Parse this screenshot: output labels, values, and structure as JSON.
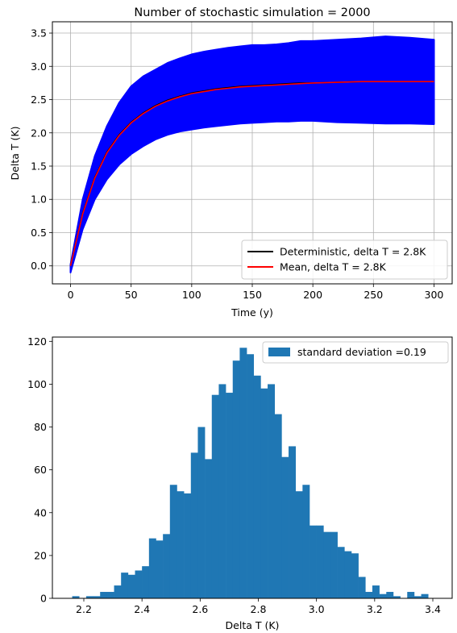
{
  "chart_data": [
    {
      "type": "line",
      "title": "Number of stochastic simulation = 2000",
      "xlabel": "Time (y)",
      "ylabel": "Delta T (K)",
      "xlim": [
        -15,
        315
      ],
      "ylim": [
        -0.27,
        3.67
      ],
      "xticks": [
        0,
        50,
        100,
        150,
        200,
        250,
        300
      ],
      "xtick_labels": [
        "0",
        "50",
        "100",
        "150",
        "200",
        "250",
        "300"
      ],
      "yticks": [
        0.0,
        0.5,
        1.0,
        1.5,
        2.0,
        2.5,
        3.0,
        3.5
      ],
      "ytick_labels": [
        "0.0",
        "0.5",
        "1.0",
        "1.5",
        "2.0",
        "2.5",
        "3.0",
        "3.5"
      ],
      "grid": true,
      "legend_position": "lower-right",
      "series": [
        {
          "name": "Deterministic, delta T = 2.8K",
          "color": "#000000",
          "x": [
            0,
            10,
            20,
            30,
            40,
            50,
            60,
            70,
            80,
            90,
            100,
            110,
            120,
            130,
            140,
            150,
            160,
            170,
            180,
            190,
            200,
            220,
            240,
            260,
            280,
            300
          ],
          "values": [
            0,
            0.79,
            1.33,
            1.71,
            1.97,
            2.16,
            2.3,
            2.41,
            2.49,
            2.55,
            2.6,
            2.63,
            2.66,
            2.68,
            2.7,
            2.71,
            2.72,
            2.73,
            2.74,
            2.75,
            2.75,
            2.76,
            2.77,
            2.77,
            2.77,
            2.77
          ]
        },
        {
          "name": "Mean, delta T = 2.8K",
          "color": "#ff0000",
          "x": [
            0,
            10,
            20,
            30,
            40,
            50,
            60,
            70,
            80,
            90,
            100,
            110,
            120,
            130,
            140,
            150,
            160,
            170,
            180,
            190,
            200,
            220,
            240,
            260,
            280,
            300
          ],
          "values": [
            0,
            0.78,
            1.32,
            1.7,
            1.96,
            2.15,
            2.29,
            2.4,
            2.48,
            2.54,
            2.59,
            2.62,
            2.65,
            2.67,
            2.69,
            2.7,
            2.71,
            2.72,
            2.73,
            2.74,
            2.75,
            2.76,
            2.77,
            2.77,
            2.77,
            2.77
          ]
        }
      ],
      "ensemble": {
        "color": "#0000ff",
        "x": [
          0,
          10,
          20,
          30,
          40,
          50,
          60,
          70,
          80,
          90,
          100,
          110,
          120,
          130,
          140,
          150,
          160,
          170,
          180,
          190,
          200,
          220,
          240,
          260,
          280,
          300
        ],
        "upper": [
          0.02,
          1.0,
          1.65,
          2.1,
          2.45,
          2.7,
          2.85,
          2.95,
          3.05,
          3.12,
          3.18,
          3.22,
          3.25,
          3.28,
          3.3,
          3.32,
          3.32,
          3.33,
          3.35,
          3.38,
          3.38,
          3.4,
          3.42,
          3.45,
          3.43,
          3.4
        ],
        "lower": [
          -0.1,
          0.55,
          1.0,
          1.3,
          1.52,
          1.68,
          1.8,
          1.9,
          1.97,
          2.02,
          2.05,
          2.08,
          2.1,
          2.12,
          2.14,
          2.15,
          2.16,
          2.17,
          2.17,
          2.18,
          2.18,
          2.16,
          2.15,
          2.14,
          2.14,
          2.13
        ]
      }
    },
    {
      "type": "bar",
      "subtype": "histogram",
      "xlabel": "Delta T (K)",
      "ylabel": "",
      "xlim": [
        2.118,
        2.43
      ],
      "ylim": [
        0,
        122
      ],
      "xticks": [
        2.2,
        2.4,
        2.6,
        2.8,
        3.0,
        3.2,
        3.4
      ],
      "xtick_labels": [
        "2.2",
        "2.4",
        "2.6",
        "2.8",
        "3.0",
        "3.2",
        "3.4"
      ],
      "yticks": [
        0,
        20,
        40,
        60,
        80,
        100,
        120
      ],
      "ytick_labels": [
        "0",
        "20",
        "40",
        "60",
        "80",
        "100",
        "120"
      ],
      "grid": false,
      "legend_position": "upper-right",
      "bar_color": "#1f77b4",
      "bin_start": 2.16,
      "bin_width": 0.024,
      "series": [
        {
          "name": "standard deviation =0.19",
          "values": [
            1,
            0,
            1,
            1,
            3,
            3,
            6,
            12,
            11,
            13,
            15,
            28,
            27,
            30,
            53,
            50,
            49,
            68,
            80,
            65,
            95,
            100,
            96,
            111,
            117,
            114,
            104,
            98,
            100,
            86,
            66,
            71,
            50,
            53,
            34,
            34,
            31,
            31,
            24,
            22,
            21,
            10,
            3,
            6,
            2,
            3,
            1,
            0,
            3,
            1,
            2
          ]
        }
      ]
    }
  ]
}
